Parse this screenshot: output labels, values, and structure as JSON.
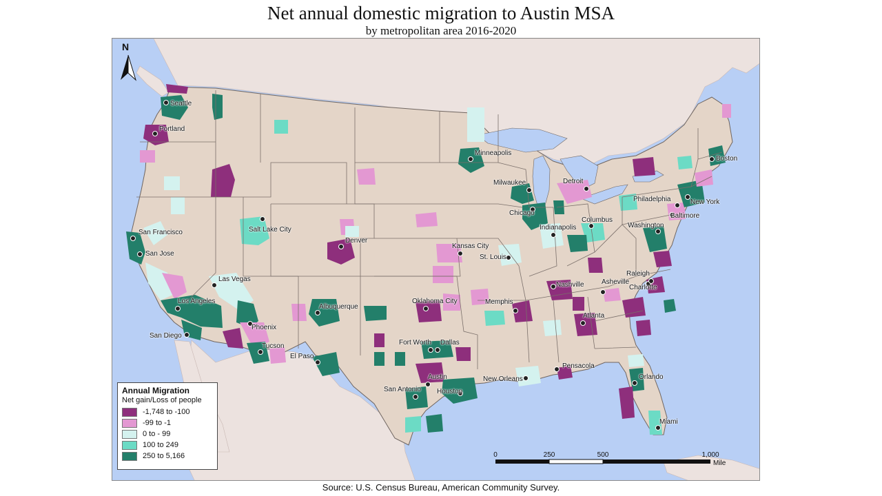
{
  "title": "Net annual domestic migration to Austin MSA",
  "subtitle": "by metropolitan area 2016-2020",
  "source": "Source:  U.S. Census Bureau, American Community Survey.",
  "north_arrow_label": "N",
  "legend": {
    "title": "Annual Migration",
    "subtitle": "Net gain/Loss of people",
    "classes": [
      {
        "label": "-1,748 to -100",
        "color": "#8e2f7c"
      },
      {
        "label": "-99 to -1",
        "color": "#e398d2"
      },
      {
        "label": "0 to - 99",
        "color": "#d4f2ef"
      },
      {
        "label": "100 to 249",
        "color": "#6cdbc5"
      },
      {
        "label": "250 to 5,166",
        "color": "#237f6a"
      }
    ]
  },
  "scale": {
    "ticks": [
      "0",
      "250",
      "500",
      "1,000"
    ],
    "unit": "Miles"
  },
  "colors": {
    "water": "#b8cff5",
    "land_us": "#e4d5c8",
    "land_other": "#ece2df",
    "border": "#7a6f6a"
  },
  "cities": [
    {
      "name": "Seattle"
    },
    {
      "name": "Portland"
    },
    {
      "name": "San Francisco"
    },
    {
      "name": "San Jose"
    },
    {
      "name": "Los Angeles"
    },
    {
      "name": "San Diego"
    },
    {
      "name": "Las Vegas"
    },
    {
      "name": "Phoenix"
    },
    {
      "name": "Tucson"
    },
    {
      "name": "Salt Lake City"
    },
    {
      "name": "Denver"
    },
    {
      "name": "Albuquerque"
    },
    {
      "name": "El Paso"
    },
    {
      "name": "Minneapolis"
    },
    {
      "name": "Milwaukee"
    },
    {
      "name": "Chicago"
    },
    {
      "name": "Detroit"
    },
    {
      "name": "Kansas City"
    },
    {
      "name": "St. Louis"
    },
    {
      "name": "Indianapolis"
    },
    {
      "name": "Columbus"
    },
    {
      "name": "Oklahoma City"
    },
    {
      "name": "Fort Worth"
    },
    {
      "name": "Dallas"
    },
    {
      "name": "Austin"
    },
    {
      "name": "San Antonio"
    },
    {
      "name": "Houston"
    },
    {
      "name": "New Orleans"
    },
    {
      "name": "Memphis"
    },
    {
      "name": "Nashville"
    },
    {
      "name": "Atlanta"
    },
    {
      "name": "Pensacola"
    },
    {
      "name": "Orlando"
    },
    {
      "name": "Miami"
    },
    {
      "name": "Asheville"
    },
    {
      "name": "Charlotte"
    },
    {
      "name": "Raleigh"
    },
    {
      "name": "Washington"
    },
    {
      "name": "Baltimore"
    },
    {
      "name": "Philadelphia"
    },
    {
      "name": "New York"
    },
    {
      "name": "Boston"
    }
  ]
}
